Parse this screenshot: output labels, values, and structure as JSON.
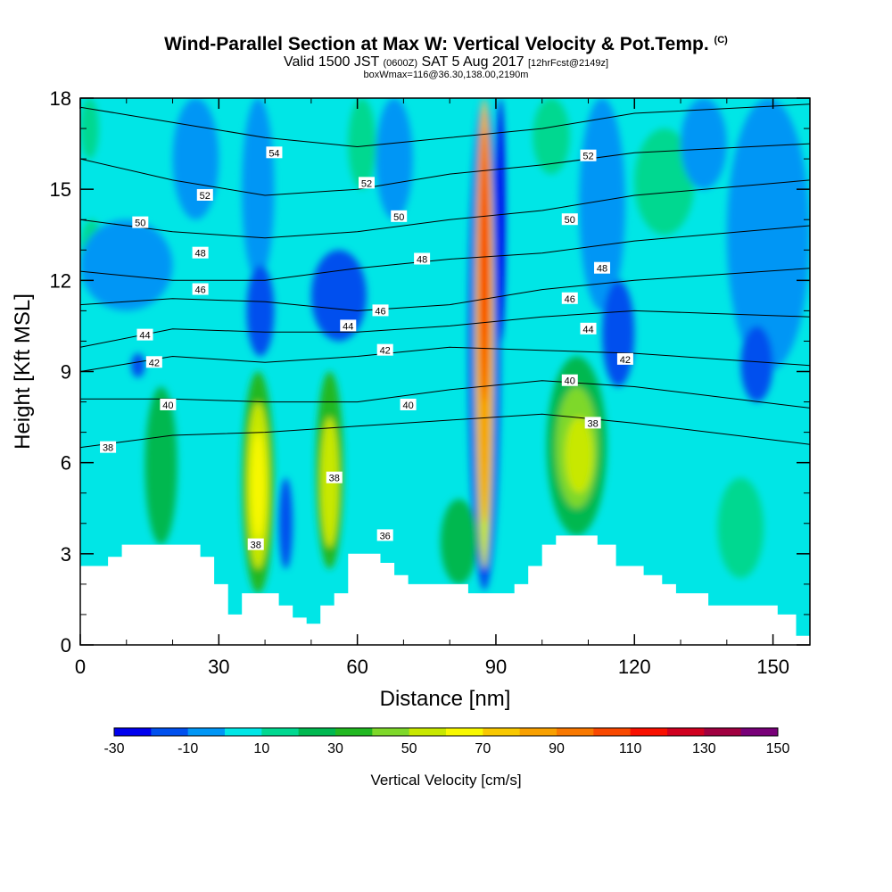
{
  "title": {
    "main": "Wind-Parallel Section at Max W: Vertical Velocity & Pot.Temp.",
    "main_badge": "(C)",
    "valid_prefix": "Valid 1500 JST",
    "valid_utc": "(0600Z)",
    "valid_date": "SAT 5 Aug 2017",
    "valid_fcst": "[12hrFcst@2149z]",
    "box": "boxWmax=116@36.30,138.00,2190m"
  },
  "chart_data": {
    "type": "heatmap",
    "title": "Wind-Parallel Section at Max W: Vertical Velocity & Pot.Temp.",
    "xlabel": "Distance [nm]",
    "ylabel": "Height [Kft MSL]",
    "xlim": [
      0,
      158
    ],
    "ylim": [
      0,
      18
    ],
    "x_ticks": [
      0,
      30,
      60,
      90,
      120,
      150
    ],
    "x_tick_labels": [
      "0",
      "30",
      "60",
      "90",
      "120",
      "150"
    ],
    "y_ticks": [
      0,
      3,
      6,
      9,
      12,
      15,
      18
    ],
    "y_tick_labels": [
      "0",
      "3",
      "6",
      "9",
      "12",
      "15",
      "18"
    ],
    "background_level": 5,
    "terrain": [
      [
        0,
        2.6
      ],
      [
        6,
        2.6
      ],
      [
        6,
        2.9
      ],
      [
        9,
        2.9
      ],
      [
        9,
        3.3
      ],
      [
        26,
        3.3
      ],
      [
        26,
        2.9
      ],
      [
        29,
        2.9
      ],
      [
        29,
        2.0
      ],
      [
        32,
        2.0
      ],
      [
        32,
        1.0
      ],
      [
        35,
        1.0
      ],
      [
        35,
        1.7
      ],
      [
        43,
        1.7
      ],
      [
        43,
        1.3
      ],
      [
        46,
        1.3
      ],
      [
        46,
        0.9
      ],
      [
        49,
        0.9
      ],
      [
        49,
        0.7
      ],
      [
        52,
        0.7
      ],
      [
        52,
        1.3
      ],
      [
        55,
        1.3
      ],
      [
        55,
        1.7
      ],
      [
        58,
        1.7
      ],
      [
        58,
        3.0
      ],
      [
        65,
        3.0
      ],
      [
        65,
        2.7
      ],
      [
        68,
        2.7
      ],
      [
        68,
        2.3
      ],
      [
        71,
        2.3
      ],
      [
        71,
        2.0
      ],
      [
        84,
        2.0
      ],
      [
        84,
        1.7
      ],
      [
        94,
        1.7
      ],
      [
        94,
        2.0
      ],
      [
        97,
        2.0
      ],
      [
        97,
        2.6
      ],
      [
        100,
        2.6
      ],
      [
        100,
        3.3
      ],
      [
        103,
        3.3
      ],
      [
        103,
        3.6
      ],
      [
        112,
        3.6
      ],
      [
        112,
        3.3
      ],
      [
        116,
        3.3
      ],
      [
        116,
        2.6
      ],
      [
        122,
        2.6
      ],
      [
        122,
        2.3
      ],
      [
        126,
        2.3
      ],
      [
        126,
        2.0
      ],
      [
        129,
        2.0
      ],
      [
        129,
        1.7
      ],
      [
        136,
        1.7
      ],
      [
        136,
        1.3
      ],
      [
        151,
        1.3
      ],
      [
        151,
        1.0
      ],
      [
        155,
        1.0
      ],
      [
        155,
        0.3
      ],
      [
        158,
        0.3
      ]
    ],
    "w_cells": [
      {
        "x": [
          84,
          91
        ],
        "y": [
          1.8,
          18
        ],
        "value": -20
      },
      {
        "x": [
          85.5,
          89.5
        ],
        "y": [
          2.5,
          18
        ],
        "value": 50
      },
      {
        "x": [
          86,
          89
        ],
        "y": [
          4,
          17.6
        ],
        "value": 80
      },
      {
        "x": [
          86.5,
          88.5
        ],
        "y": [
          8,
          17
        ],
        "value": 100
      },
      {
        "x": [
          87.2,
          88
        ],
        "y": [
          10,
          16
        ],
        "value": 115
      },
      {
        "x": [
          90,
          92
        ],
        "y": [
          10,
          18
        ],
        "value": -25
      },
      {
        "x": [
          35,
          42
        ],
        "y": [
          1.7,
          9
        ],
        "value": 30
      },
      {
        "x": [
          36,
          41
        ],
        "y": [
          2.5,
          8
        ],
        "value": 50
      },
      {
        "x": [
          37,
          40
        ],
        "y": [
          3.5,
          7
        ],
        "value": 65
      },
      {
        "x": [
          51,
          57
        ],
        "y": [
          2.5,
          9
        ],
        "value": 30
      },
      {
        "x": [
          52,
          56
        ],
        "y": [
          3.2,
          7.5
        ],
        "value": 50
      },
      {
        "x": [
          101,
          114
        ],
        "y": [
          3.6,
          9.5
        ],
        "value": 25
      },
      {
        "x": [
          103,
          112
        ],
        "y": [
          4.5,
          8.5
        ],
        "value": 40
      },
      {
        "x": [
          105,
          111
        ],
        "y": [
          5,
          7.5
        ],
        "value": 50
      },
      {
        "x": [
          78,
          86
        ],
        "y": [
          2,
          4.8
        ],
        "value": 25
      },
      {
        "x": [
          14,
          21
        ],
        "y": [
          3.3,
          8.5
        ],
        "value": 20
      },
      {
        "x": [
          138,
          148
        ],
        "y": [
          2.2,
          5.5
        ],
        "value": 15
      },
      {
        "x": [
          120,
          133
        ],
        "y": [
          13.5,
          17
        ],
        "value": 15
      },
      {
        "x": [
          58,
          64
        ],
        "y": [
          15,
          18
        ],
        "value": 15
      },
      {
        "x": [
          98,
          106
        ],
        "y": [
          15.5,
          18
        ],
        "value": 15
      },
      {
        "x": [
          0,
          4
        ],
        "y": [
          16,
          18
        ],
        "value": 15
      },
      {
        "x": [
          0,
          5
        ],
        "y": [
          12,
          14
        ],
        "value": 15
      },
      {
        "x": [
          20,
          30
        ],
        "y": [
          14,
          18
        ],
        "value": -5
      },
      {
        "x": [
          35,
          42
        ],
        "y": [
          12,
          18
        ],
        "value": -5
      },
      {
        "x": [
          64,
          72
        ],
        "y": [
          14,
          18
        ],
        "value": -5
      },
      {
        "x": [
          130,
          140
        ],
        "y": [
          15,
          18
        ],
        "value": -5
      },
      {
        "x": [
          140,
          158
        ],
        "y": [
          9,
          18
        ],
        "value": -5
      },
      {
        "x": [
          108,
          118
        ],
        "y": [
          11,
          18
        ],
        "value": -5
      },
      {
        "x": [
          0,
          20
        ],
        "y": [
          11,
          14
        ],
        "value": -5
      },
      {
        "x": [
          36,
          42
        ],
        "y": [
          9.5,
          12.5
        ],
        "value": -15
      },
      {
        "x": [
          50,
          62
        ],
        "y": [
          10,
          13
        ],
        "value": -15
      },
      {
        "x": [
          113,
          120
        ],
        "y": [
          8.5,
          12
        ],
        "value": -15
      },
      {
        "x": [
          143,
          150
        ],
        "y": [
          8,
          10.5
        ],
        "value": -15
      },
      {
        "x": [
          11,
          14
        ],
        "y": [
          8.8,
          9.6
        ],
        "value": -15
      },
      {
        "x": [
          43,
          46
        ],
        "y": [
          2.5,
          5.5
        ],
        "value": -15
      }
    ],
    "theta_contours": [
      {
        "label": "54",
        "x": [
          0,
          20,
          40,
          60,
          80,
          100,
          120,
          158
        ],
        "y": [
          17.7,
          17.2,
          16.7,
          16.4,
          16.7,
          17.0,
          17.5,
          17.8
        ]
      },
      {
        "label": "52",
        "x": [
          0,
          20,
          40,
          60,
          80,
          100,
          120,
          158
        ],
        "y": [
          16.0,
          15.3,
          14.8,
          15.0,
          15.5,
          15.8,
          16.2,
          16.5
        ]
      },
      {
        "label": "50",
        "x": [
          0,
          20,
          40,
          60,
          80,
          100,
          120,
          158
        ],
        "y": [
          14.0,
          13.6,
          13.4,
          13.6,
          14.0,
          14.3,
          14.8,
          15.3
        ]
      },
      {
        "label": "48",
        "x": [
          0,
          20,
          40,
          60,
          80,
          100,
          120,
          158
        ],
        "y": [
          12.3,
          12.0,
          12.0,
          12.4,
          12.7,
          12.9,
          13.3,
          13.8
        ]
      },
      {
        "label": "46",
        "x": [
          0,
          20,
          40,
          60,
          80,
          100,
          120,
          158
        ],
        "y": [
          11.2,
          11.4,
          11.3,
          11.0,
          11.2,
          11.7,
          12.0,
          12.4
        ]
      },
      {
        "label": "44",
        "x": [
          0,
          20,
          40,
          60,
          80,
          100,
          120,
          158
        ],
        "y": [
          9.8,
          10.4,
          10.3,
          10.3,
          10.5,
          10.8,
          11.0,
          10.8
        ]
      },
      {
        "label": "42",
        "x": [
          0,
          20,
          40,
          60,
          80,
          100,
          120,
          158
        ],
        "y": [
          9.0,
          9.5,
          9.3,
          9.5,
          9.8,
          9.7,
          9.6,
          9.2
        ]
      },
      {
        "label": "40",
        "x": [
          0,
          20,
          40,
          60,
          80,
          100,
          120,
          158
        ],
        "y": [
          8.1,
          8.1,
          8.0,
          8.0,
          8.4,
          8.7,
          8.5,
          7.8
        ]
      },
      {
        "label": "38",
        "x": [
          0,
          20,
          40,
          60,
          80,
          100,
          120,
          158
        ],
        "y": [
          6.5,
          6.9,
          7.0,
          7.2,
          7.4,
          7.6,
          7.3,
          6.6
        ]
      }
    ],
    "theta_labels": [
      {
        "text": "54",
        "x": 42,
        "y": 16.2
      },
      {
        "text": "52",
        "x": 27,
        "y": 14.8
      },
      {
        "text": "52",
        "x": 62,
        "y": 15.2
      },
      {
        "text": "52",
        "x": 110,
        "y": 16.1
      },
      {
        "text": "50",
        "x": 13,
        "y": 13.9
      },
      {
        "text": "50",
        "x": 69,
        "y": 14.1
      },
      {
        "text": "50",
        "x": 106,
        "y": 14.0
      },
      {
        "text": "48",
        "x": 26,
        "y": 12.9
      },
      {
        "text": "48",
        "x": 74,
        "y": 12.7
      },
      {
        "text": "48",
        "x": 113,
        "y": 12.4
      },
      {
        "text": "46",
        "x": 26,
        "y": 11.7
      },
      {
        "text": "46",
        "x": 65,
        "y": 11.0
      },
      {
        "text": "46",
        "x": 106,
        "y": 11.4
      },
      {
        "text": "44",
        "x": 14,
        "y": 10.2
      },
      {
        "text": "44",
        "x": 58,
        "y": 10.5
      },
      {
        "text": "44",
        "x": 110,
        "y": 10.4
      },
      {
        "text": "42",
        "x": 16,
        "y": 9.3
      },
      {
        "text": "42",
        "x": 66,
        "y": 9.7
      },
      {
        "text": "42",
        "x": 118,
        "y": 9.4
      },
      {
        "text": "40",
        "x": 19,
        "y": 7.9
      },
      {
        "text": "40",
        "x": 71,
        "y": 7.9
      },
      {
        "text": "40",
        "x": 106,
        "y": 8.7
      },
      {
        "text": "38",
        "x": 6,
        "y": 6.5
      },
      {
        "text": "38",
        "x": 111,
        "y": 7.3
      },
      {
        "text": "38",
        "x": 55,
        "y": 5.5
      },
      {
        "text": "38",
        "x": 38,
        "y": 3.3
      },
      {
        "text": "36",
        "x": 66,
        "y": 3.6
      }
    ],
    "colorbar": {
      "title": "Vertical Velocity [cm/s]",
      "levels": [
        -30,
        -20,
        -10,
        0,
        10,
        20,
        30,
        40,
        50,
        60,
        70,
        80,
        90,
        100,
        110,
        120,
        130,
        140,
        150
      ],
      "tick_labels": [
        "-30",
        "-10",
        "10",
        "30",
        "50",
        "70",
        "90",
        "110",
        "130",
        "150"
      ],
      "colors": [
        "#0000ee",
        "#0050ee",
        "#0096f5",
        "#00e6e6",
        "#00d890",
        "#00b850",
        "#22b822",
        "#7ed82a",
        "#c8e800",
        "#f8f800",
        "#f8c800",
        "#f8a000",
        "#f87800",
        "#f84800",
        "#f81000",
        "#d00020",
        "#a00040",
        "#780078"
      ]
    }
  }
}
